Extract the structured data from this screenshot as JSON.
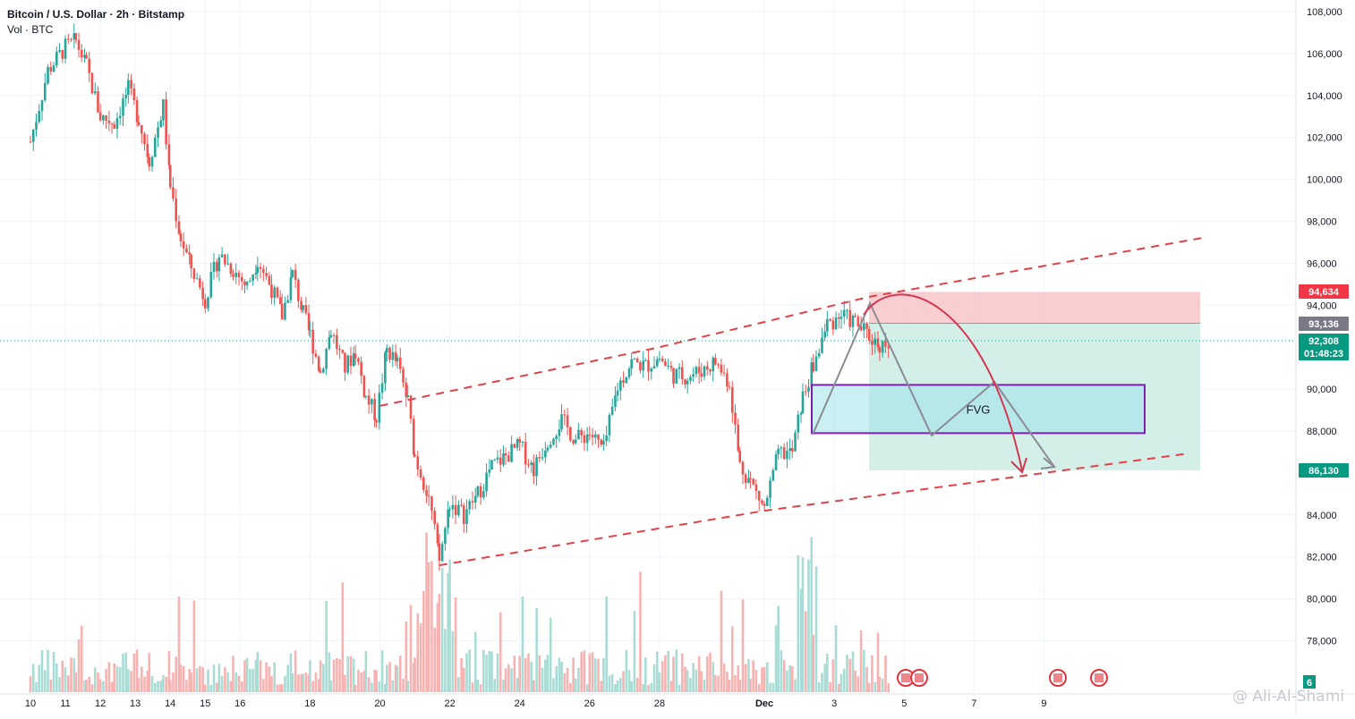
{
  "header": {
    "title": "Bitcoin / U.S. Dollar · 2h · Bitstamp",
    "volume_label": "Vol · BTC"
  },
  "chart_data": {
    "type": "candlestick",
    "symbol": "Bitcoin / U.S. Dollar",
    "interval": "2h",
    "exchange": "Bitstamp",
    "x_ticks": [
      "10",
      "12",
      "14",
      "16",
      "18",
      "20",
      "22",
      "24",
      "26",
      "28",
      "Dec",
      "3",
      "5",
      "7",
      "9",
      "11",
      "13",
      "15"
    ],
    "y_ticks": [
      "108,000",
      "106,000",
      "104,000",
      "102,000",
      "100,000",
      "98,000",
      "96,000",
      "94,000",
      "90,000",
      "88,000",
      "84,000",
      "82,000",
      "80,000",
      "78,000"
    ],
    "ylim": [
      76000,
      108500
    ],
    "price_path": [
      [
        "10",
        101800
      ],
      [
        "10.5",
        105200
      ],
      [
        "11",
        106300
      ],
      [
        "11.3",
        106600
      ],
      [
        "11.6",
        105400
      ],
      [
        "12",
        103000
      ],
      [
        "12.4",
        102700
      ],
      [
        "12.8",
        104300
      ],
      [
        "13.1",
        102900
      ],
      [
        "13.4",
        100900
      ],
      [
        "13.8",
        103500
      ],
      [
        "14",
        99700
      ],
      [
        "14.3",
        97200
      ],
      [
        "14.6",
        95800
      ],
      [
        "15",
        94300
      ],
      [
        "15.4",
        96400
      ],
      [
        "15.8",
        95700
      ],
      [
        "16.2",
        94900
      ],
      [
        "16.5",
        96200
      ],
      [
        "16.9",
        94800
      ],
      [
        "17.2",
        93500
      ],
      [
        "17.5",
        95500
      ],
      [
        "17.8",
        93600
      ],
      [
        "18",
        92600
      ],
      [
        "18.3",
        90800
      ],
      [
        "18.6",
        92800
      ],
      [
        "19",
        91000
      ],
      [
        "19.3",
        91800
      ],
      [
        "19.6",
        89600
      ],
      [
        "19.9",
        88700
      ],
      [
        "20.2",
        91900
      ],
      [
        "20.5",
        91200
      ],
      [
        "20.8",
        89400
      ],
      [
        "21",
        86800
      ],
      [
        "21.4",
        84900
      ],
      [
        "21.7",
        81800
      ],
      [
        "22",
        84600
      ],
      [
        "22.4",
        84000
      ],
      [
        "22.8",
        85000
      ],
      [
        "23.2",
        86300
      ],
      [
        "23.6",
        86800
      ],
      [
        "24",
        87300
      ],
      [
        "24.4",
        86200
      ],
      [
        "24.8",
        87600
      ],
      [
        "25.2",
        88500
      ],
      [
        "25.6",
        87600
      ],
      [
        "26",
        87900
      ],
      [
        "26.4",
        87100
      ],
      [
        "26.8",
        90100
      ],
      [
        "27.2",
        91300
      ],
      [
        "27.6",
        91100
      ],
      [
        "28",
        91500
      ],
      [
        "28.4",
        90700
      ],
      [
        "28.8",
        90600
      ],
      [
        "29.2",
        90900
      ],
      [
        "29.6",
        91300
      ],
      [
        "30",
        90300
      ],
      [
        "30.3",
        86400
      ],
      [
        "30.6",
        85600
      ],
      [
        "31",
        84300
      ],
      [
        "31.4",
        86900
      ],
      [
        "31.8",
        87000
      ],
      [
        "32.1",
        89600
      ],
      [
        "32.4",
        91100
      ],
      [
        "32.8",
        93100
      ],
      [
        "33.2",
        93500
      ],
      [
        "33.6",
        93200
      ],
      [
        "34",
        92500
      ],
      [
        "34.3",
        92100
      ],
      [
        "34.6",
        92300
      ]
    ],
    "annotations": {
      "fvg_label": "FVG",
      "fvg_zone": [
        87900,
        90200
      ],
      "stop_level": 94634,
      "entry_level": 93136,
      "target_level": 86130,
      "channel_upper": [
        [
          20,
          89200
        ],
        [
          28,
          92000
        ],
        [
          34,
          94400
        ],
        [
          43.5,
          97200
        ]
      ],
      "channel_lower": [
        [
          21.7,
          81600
        ],
        [
          31,
          84200
        ],
        [
          43,
          86900
        ]
      ]
    },
    "price_labels": {
      "stop": "94,634",
      "entry": "93,136",
      "current": "92,308",
      "countdown": "01:48:23",
      "target": "86,130"
    },
    "volume_badge": "6",
    "grid": true,
    "legend": "top-left"
  },
  "watermark": "@ Ali-Al-Shami",
  "colors": {
    "up": "#26a69a",
    "down": "#ef5350",
    "channel": "#e0414a",
    "fvg": "#7e1fb0",
    "stop_zone": "#f7c5c8",
    "target_zone": "#cfece6",
    "current_price": "#089981",
    "target_label": "#089981",
    "stop_label": "#f23645",
    "entry_label": "#787b86"
  }
}
